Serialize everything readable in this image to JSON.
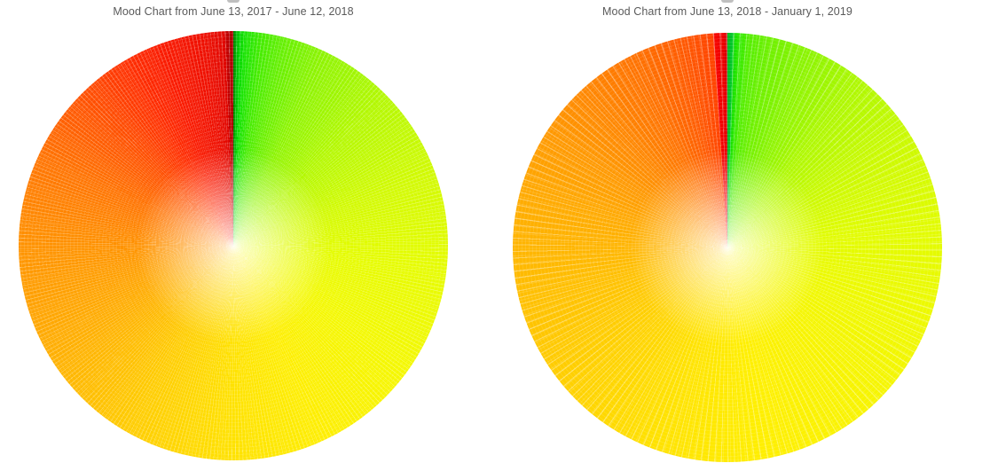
{
  "page": {
    "background_color": "#ffffff",
    "title_text_color": "#5a5a5a",
    "artifact_color": "#bfbfbf"
  },
  "chart_data": [
    {
      "type": "pie",
      "title": "Mood Chart from June 13, 2017 - June 12, 2018",
      "date_start": "June 13, 2017",
      "date_end": "June 12, 2018",
      "slice_count_estimate": 365,
      "direction": "clockwise-from-top",
      "legend": "none",
      "notes": "daily mood slices forming a continuous best(green)-to-worst(red) color wheel with white moire sheen toward center",
      "color_stops": [
        {
          "deg": 0,
          "color": "#007800"
        },
        {
          "deg": 0.6,
          "color": "#00a800"
        },
        {
          "deg": 1.6,
          "color": "#00d000"
        },
        {
          "deg": 3,
          "color": "#13e300"
        },
        {
          "deg": 8,
          "color": "#46ec00"
        },
        {
          "deg": 15,
          "color": "#69f000"
        },
        {
          "deg": 25,
          "color": "#8df400"
        },
        {
          "deg": 45,
          "color": "#b3f800"
        },
        {
          "deg": 70,
          "color": "#d1fa00"
        },
        {
          "deg": 95,
          "color": "#e5fc00"
        },
        {
          "deg": 125,
          "color": "#f4f800"
        },
        {
          "deg": 155,
          "color": "#feee00"
        },
        {
          "deg": 180,
          "color": "#ffe200"
        },
        {
          "deg": 210,
          "color": "#ffcc00"
        },
        {
          "deg": 240,
          "color": "#ffae00"
        },
        {
          "deg": 270,
          "color": "#ff9200"
        },
        {
          "deg": 295,
          "color": "#ff7200"
        },
        {
          "deg": 315,
          "color": "#ff5000"
        },
        {
          "deg": 330,
          "color": "#ff2e00"
        },
        {
          "deg": 340,
          "color": "#fa1a00"
        },
        {
          "deg": 352,
          "color": "#ee0e00"
        },
        {
          "deg": 357.6,
          "color": "#e00600"
        },
        {
          "deg": 358.2,
          "color": "#c00000"
        },
        {
          "deg": 360,
          "color": "#a80000"
        }
      ]
    },
    {
      "type": "pie",
      "title": "Mood Chart from June 13, 2018 - January 1, 2019",
      "date_start": "June 13, 2018",
      "date_end": "January 1, 2019",
      "slice_count_estimate": 202,
      "direction": "clockwise-from-top",
      "legend": "none",
      "notes": "daily mood slices, green through yellow and orange with a distinct pure-red band just before 12 o'clock",
      "color_stops": [
        {
          "deg": 0,
          "color": "#00b81e"
        },
        {
          "deg": 1.3,
          "color": "#00c82c"
        },
        {
          "deg": 2,
          "color": "#14e000"
        },
        {
          "deg": 3.2,
          "color": "#2fe900"
        },
        {
          "deg": 6,
          "color": "#55ee00"
        },
        {
          "deg": 12,
          "color": "#70f100"
        },
        {
          "deg": 22,
          "color": "#8af400"
        },
        {
          "deg": 38,
          "color": "#aef800"
        },
        {
          "deg": 60,
          "color": "#ccfa00"
        },
        {
          "deg": 85,
          "color": "#e2fc00"
        },
        {
          "deg": 110,
          "color": "#eef900"
        },
        {
          "deg": 140,
          "color": "#f8f400"
        },
        {
          "deg": 170,
          "color": "#ffef00"
        },
        {
          "deg": 200,
          "color": "#ffe200"
        },
        {
          "deg": 230,
          "color": "#ffd000"
        },
        {
          "deg": 258,
          "color": "#ffbe00"
        },
        {
          "deg": 282,
          "color": "#ffac00"
        },
        {
          "deg": 303,
          "color": "#ff9800"
        },
        {
          "deg": 320,
          "color": "#ff8400"
        },
        {
          "deg": 335,
          "color": "#ff7000"
        },
        {
          "deg": 345,
          "color": "#ff5e00"
        },
        {
          "deg": 352,
          "color": "#ff4e00"
        },
        {
          "deg": 356.2,
          "color": "#ff4200"
        },
        {
          "deg": 356.3,
          "color": "#f80400"
        },
        {
          "deg": 359.3,
          "color": "#ea0000"
        },
        {
          "deg": 359.5,
          "color": "#c80000"
        },
        {
          "deg": 360,
          "color": "#c80000"
        }
      ]
    }
  ]
}
